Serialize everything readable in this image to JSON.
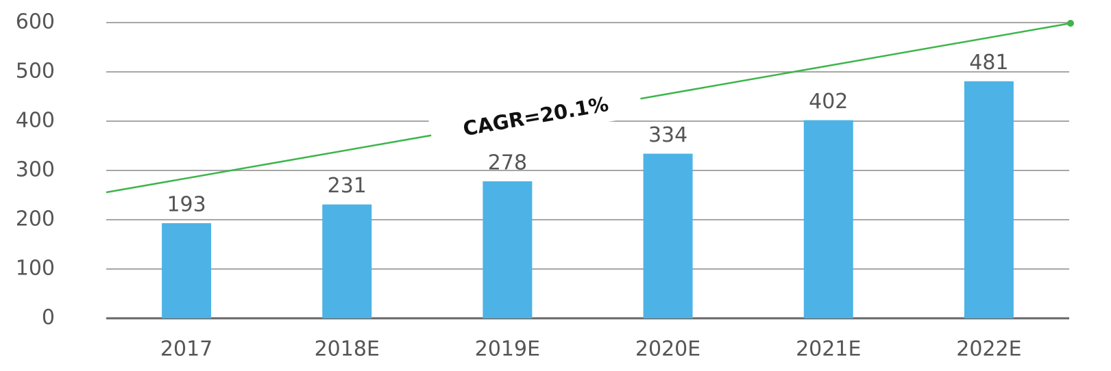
{
  "chart_data": {
    "type": "bar",
    "categories": [
      "2017",
      "2018E",
      "2019E",
      "2020E",
      "2021E",
      "2022E"
    ],
    "values": [
      193,
      231,
      278,
      334,
      402,
      481
    ],
    "color": "#4db3e6",
    "ylim": [
      0,
      600
    ],
    "yticks": [
      0,
      100,
      200,
      300,
      400,
      500,
      600
    ],
    "grid": true,
    "annotation": "CAGR=20.1%"
  }
}
